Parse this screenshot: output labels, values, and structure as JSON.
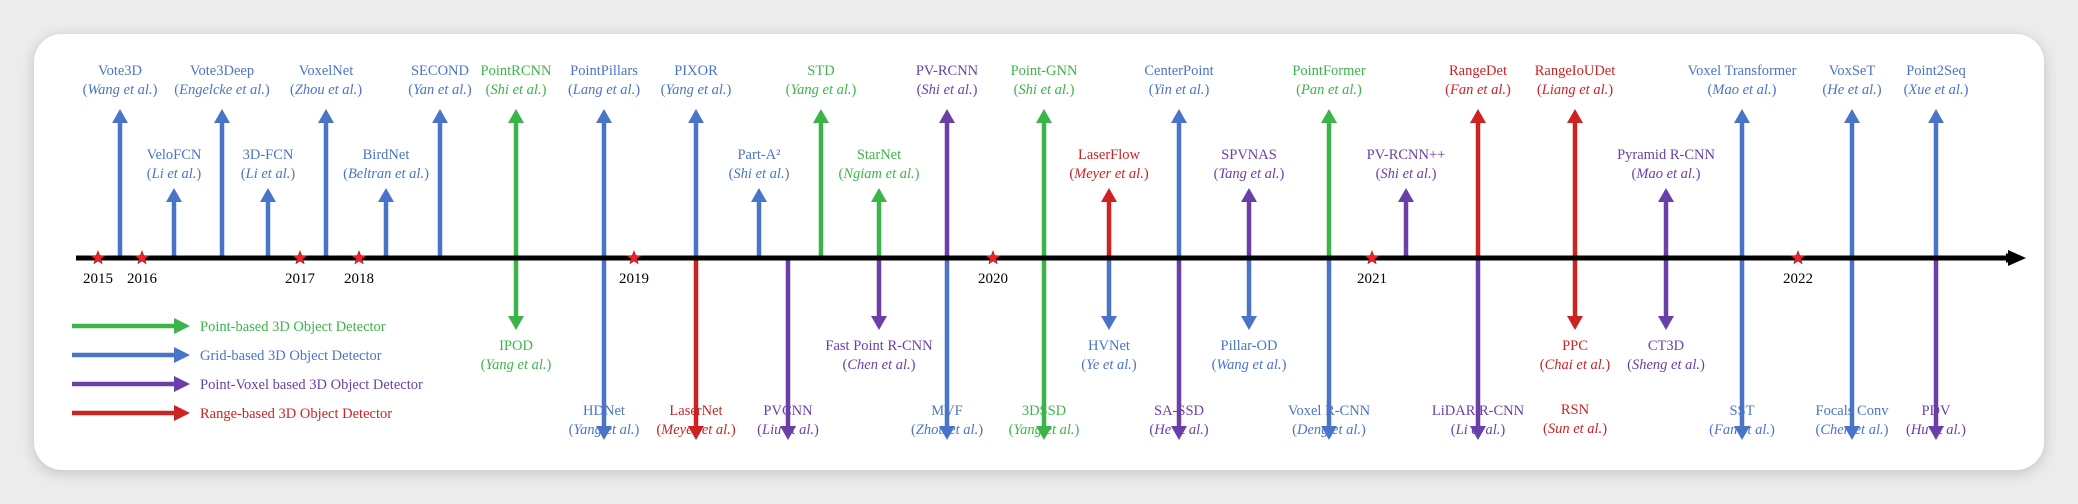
{
  "colors": {
    "point": "#3cb449",
    "grid": "#4a74c8",
    "pointvoxel": "#6a3fa8",
    "range": "#cc2222",
    "axis": "#000000",
    "year_star": "#e8262a"
  },
  "years": [
    {
      "label": "2015",
      "pos": 64
    },
    {
      "label": "2016",
      "pos": 108
    },
    {
      "label": "2017",
      "pos": 266
    },
    {
      "label": "2018",
      "pos": 325
    },
    {
      "label": "2019",
      "pos": 600
    },
    {
      "label": "2020",
      "pos": 959
    },
    {
      "label": "2021",
      "pos": 1338
    },
    {
      "label": "2022",
      "pos": 1764
    }
  ],
  "legend": [
    {
      "label": "Point-based 3D Object Detector",
      "cat": "point"
    },
    {
      "label": "Grid-based 3D Object Detector",
      "cat": "grid"
    },
    {
      "label": "Point-Voxel based 3D Object Detector",
      "cat": "pointvoxel"
    },
    {
      "label": "Range-based 3D Object Detector",
      "cat": "range"
    }
  ],
  "methods": [
    {
      "name": "Vote3D",
      "authors": "Wang et al.",
      "cat": "grid",
      "dir": "up",
      "level": "high",
      "pos": 86
    },
    {
      "name": "VeloFCN",
      "authors": "Li et al.",
      "cat": "grid",
      "dir": "up",
      "level": "low",
      "pos": 140
    },
    {
      "name": "Vote3Deep",
      "authors": "Engelcke et al.",
      "cat": "grid",
      "dir": "up",
      "level": "high",
      "pos": 188
    },
    {
      "name": "3D-FCN",
      "authors": "Li et al.",
      "cat": "grid",
      "dir": "up",
      "level": "low",
      "pos": 234
    },
    {
      "name": "VoxelNet",
      "authors": "Zhou et al.",
      "cat": "grid",
      "dir": "up",
      "level": "high",
      "pos": 292
    },
    {
      "name": "BirdNet",
      "authors": "Beltran et al.",
      "cat": "grid",
      "dir": "up",
      "level": "low",
      "pos": 352
    },
    {
      "name": "SECOND",
      "authors": "Yan et al.",
      "cat": "grid",
      "dir": "up",
      "level": "high",
      "pos": 406
    },
    {
      "name": "PointRCNN",
      "authors": "Shi et al.",
      "cat": "point",
      "dir": "up",
      "level": "high",
      "pos": 482
    },
    {
      "name": "IPOD",
      "authors": "Yang et al.",
      "cat": "point",
      "dir": "down",
      "level": "mid",
      "pos": 482
    },
    {
      "name": "PointPillars",
      "authors": "Lang et al.",
      "cat": "grid",
      "dir": "up",
      "level": "high",
      "pos": 570
    },
    {
      "name": "HDNet",
      "authors": "Yang et al.",
      "cat": "grid",
      "dir": "down",
      "level": "deep",
      "pos": 570
    },
    {
      "name": "PIXOR",
      "authors": "Yang et al.",
      "cat": "grid",
      "dir": "up",
      "level": "high",
      "pos": 662
    },
    {
      "name": "LaserNet",
      "authors": "Meyer et al.",
      "cat": "range",
      "dir": "down",
      "level": "deep",
      "pos": 662
    },
    {
      "name": "Part-A²",
      "authors": "Shi et al.",
      "cat": "grid",
      "dir": "up",
      "level": "low",
      "pos": 725
    },
    {
      "name": "PVCNN",
      "authors": "Liu et al.",
      "cat": "pointvoxel",
      "dir": "down",
      "level": "deep",
      "pos": 754
    },
    {
      "name": "STD",
      "authors": "Yang et al.",
      "cat": "point",
      "dir": "up",
      "level": "high",
      "pos": 787
    },
    {
      "name": "StarNet",
      "authors": "Ngiam et al.",
      "cat": "point",
      "dir": "up",
      "level": "low",
      "pos": 845
    },
    {
      "name": "Fast Point R-CNN",
      "authors": "Chen et al.",
      "cat": "pointvoxel",
      "dir": "down",
      "level": "mid",
      "pos": 845
    },
    {
      "name": "PV-RCNN",
      "authors": "Shi et al.",
      "cat": "pointvoxel",
      "dir": "up",
      "level": "high",
      "pos": 913
    },
    {
      "name": "MVF",
      "authors": "Zhou et al.",
      "cat": "grid",
      "dir": "down",
      "level": "deep",
      "pos": 913
    },
    {
      "name": "Point-GNN",
      "authors": "Shi et al.",
      "cat": "point",
      "dir": "up",
      "level": "high",
      "pos": 1010
    },
    {
      "name": "3DSSD",
      "authors": "Yang et al.",
      "cat": "point",
      "dir": "down",
      "level": "deep",
      "pos": 1010
    },
    {
      "name": "LaserFlow",
      "authors": "Meyer et al.",
      "cat": "range",
      "dir": "up",
      "level": "low",
      "pos": 1075
    },
    {
      "name": "HVNet",
      "authors": "Ye et al.",
      "cat": "grid",
      "dir": "down",
      "level": "mid",
      "pos": 1075
    },
    {
      "name": "CenterPoint",
      "authors": "Yin et al.",
      "cat": "grid",
      "dir": "up",
      "level": "high",
      "pos": 1145
    },
    {
      "name": "SA-SSD",
      "authors": "He et al.",
      "cat": "pointvoxel",
      "dir": "down",
      "level": "deep",
      "pos": 1145
    },
    {
      "name": "SPVNAS",
      "authors": "Tang et al.",
      "cat": "pointvoxel",
      "dir": "up",
      "level": "low",
      "pos": 1215
    },
    {
      "name": "Pillar-OD",
      "authors": "Wang et al.",
      "cat": "grid",
      "dir": "down",
      "level": "mid",
      "pos": 1215
    },
    {
      "name": "PointFormer",
      "authors": "Pan et al.",
      "cat": "point",
      "dir": "up",
      "level": "high",
      "pos": 1295
    },
    {
      "name": "Voxel R-CNN",
      "authors": "Deng et al.",
      "cat": "grid",
      "dir": "down",
      "level": "deep",
      "pos": 1295
    },
    {
      "name": "PV-RCNN++",
      "authors": "Shi et al.",
      "cat": "pointvoxel",
      "dir": "up",
      "level": "low",
      "pos": 1372
    },
    {
      "name": "RangeDet",
      "authors": "Fan et al.",
      "cat": "range",
      "dir": "up",
      "level": "high",
      "pos": 1444
    },
    {
      "name": "LiDAR R-CNN",
      "authors": "Li et al.",
      "cat": "pointvoxel",
      "dir": "down",
      "level": "deep",
      "pos": 1444
    },
    {
      "name": "RangeIoUDet",
      "authors": "Liang et al.",
      "cat": "range",
      "dir": "up",
      "level": "high",
      "pos": 1541
    },
    {
      "name": "PPC",
      "authors": "Chai et al.",
      "cat": "range",
      "dir": "down",
      "level": "mid",
      "pos": 1541
    },
    {
      "name": "RSN",
      "authors": "Sun et al.",
      "cat": "range",
      "dir": "down",
      "level": "deepr",
      "pos": 1541
    },
    {
      "name": "Pyramid R-CNN",
      "authors": "Mao et al.",
      "cat": "pointvoxel",
      "dir": "up",
      "level": "low",
      "pos": 1632
    },
    {
      "name": "CT3D",
      "authors": "Sheng et al.",
      "cat": "pointvoxel",
      "dir": "down",
      "level": "mid",
      "pos": 1632
    },
    {
      "name": "Voxel Transformer",
      "authors": "Mao et al.",
      "cat": "grid",
      "dir": "up",
      "level": "high",
      "pos": 1708
    },
    {
      "name": "SST",
      "authors": "Fan et al.",
      "cat": "grid",
      "dir": "down",
      "level": "deep",
      "pos": 1708
    },
    {
      "name": "VoxSeT",
      "authors": "He et al.",
      "cat": "grid",
      "dir": "up",
      "level": "high",
      "pos": 1818
    },
    {
      "name": "Focals Conv",
      "authors": "Chen et al.",
      "cat": "grid",
      "dir": "down",
      "level": "deep",
      "pos": 1818
    },
    {
      "name": "Point2Seq",
      "authors": "Xue et al.",
      "cat": "grid",
      "dir": "up",
      "level": "high",
      "pos": 1902
    },
    {
      "name": "PDV",
      "authors": "Hu et al.",
      "cat": "pointvoxel",
      "dir": "down",
      "level": "deep",
      "pos": 1902
    }
  ]
}
